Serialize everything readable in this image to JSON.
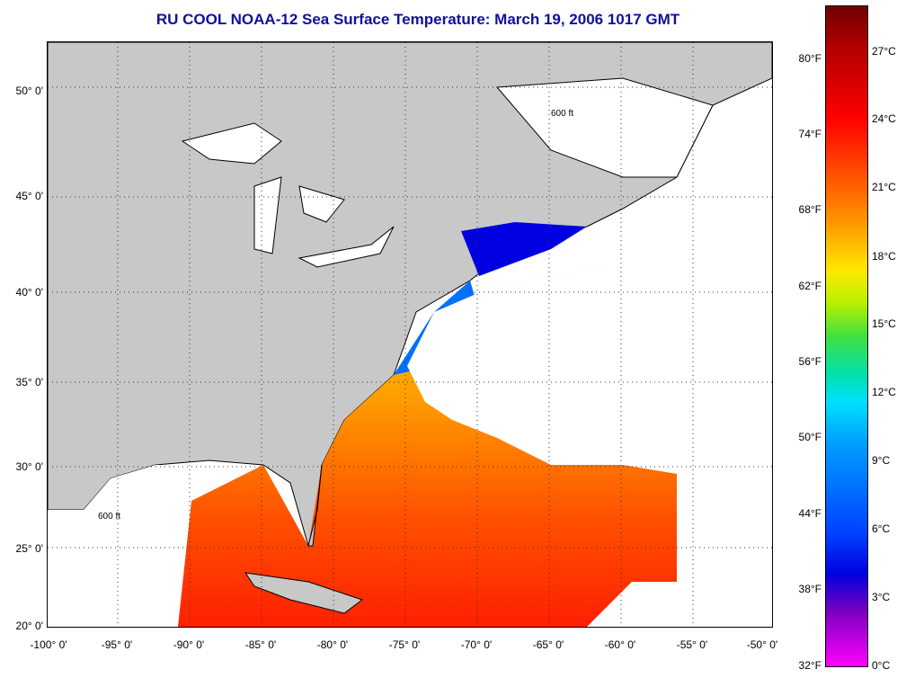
{
  "title": "RU COOL  NOAA-12  Sea Surface Temperature:  March 19, 2006 1017 GMT",
  "lat_labels": [
    "50° 0'",
    "45° 0'",
    "40° 0'",
    "35° 0'",
    "30° 0'",
    "25° 0'",
    "20° 0'"
  ],
  "lon_labels": [
    "-100° 0'",
    "-95° 0'",
    "-90° 0'",
    "-85° 0'",
    "-80° 0'",
    "-75° 0'",
    "-70° 0'",
    "-65° 0'",
    "-60° 0'",
    "-55° 0'",
    "-50° 0'"
  ],
  "colorbar": {
    "fahrenheit": [
      "80°F",
      "74°F",
      "68°F",
      "62°F",
      "56°F",
      "50°F",
      "44°F",
      "38°F",
      "32°F"
    ],
    "celsius": [
      "27°C",
      "24°C",
      "21°C",
      "18°C",
      "15°C",
      "12°C",
      "9°C",
      "6°C",
      "3°C",
      "0°C"
    ]
  },
  "contour_label": "600 ft",
  "colors": {
    "land": "#c8c8c8",
    "cloud": "#ffffff",
    "title": "#1010a0"
  }
}
